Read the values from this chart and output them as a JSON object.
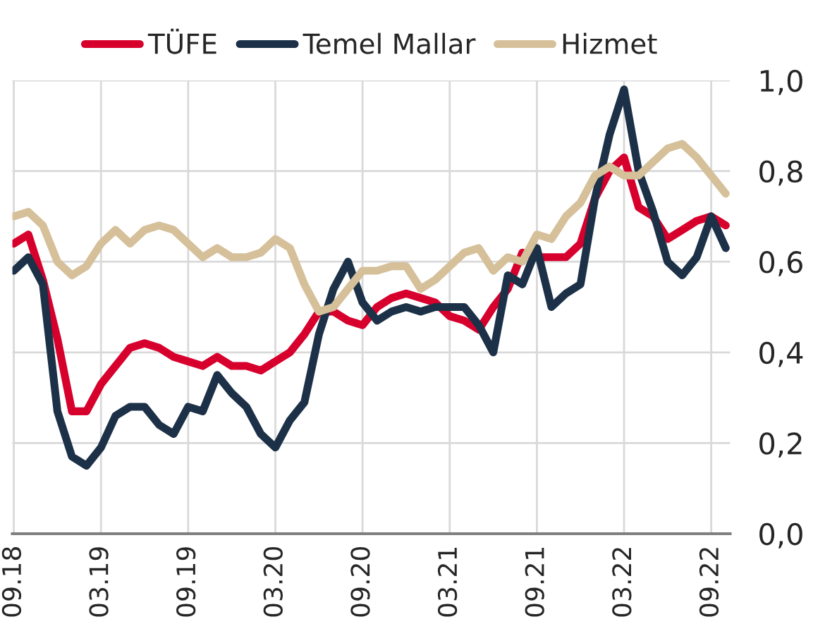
{
  "chart_data": {
    "type": "line",
    "categories": [
      "09.18",
      null,
      null,
      null,
      null,
      null,
      "03.19",
      null,
      null,
      null,
      null,
      null,
      "09.19",
      null,
      null,
      null,
      null,
      null,
      "03.20",
      null,
      null,
      null,
      null,
      null,
      "09.20",
      null,
      null,
      null,
      null,
      null,
      "03.21",
      null,
      null,
      null,
      null,
      null,
      "09.21",
      null,
      null,
      null,
      null,
      null,
      "03.22",
      null,
      null,
      null,
      null,
      null,
      "09.22",
      null
    ],
    "series": [
      {
        "name": "TÜFE",
        "color": "#d7002d",
        "values": [
          0.64,
          0.66,
          0.56,
          0.43,
          0.27,
          0.27,
          0.33,
          0.37,
          0.41,
          0.42,
          0.41,
          0.39,
          0.38,
          0.37,
          0.39,
          0.37,
          0.37,
          0.36,
          0.38,
          0.4,
          0.44,
          0.49,
          0.49,
          0.47,
          0.46,
          0.5,
          0.52,
          0.53,
          0.52,
          0.51,
          0.48,
          0.47,
          0.45,
          0.5,
          0.54,
          0.62,
          0.61,
          0.61,
          0.61,
          0.64,
          0.74,
          0.8,
          0.83,
          0.72,
          0.7,
          0.65,
          0.67,
          0.69,
          0.7,
          0.68
        ]
      },
      {
        "name": "Temel Mallar",
        "color": "#1c3148",
        "values": [
          0.58,
          0.61,
          0.55,
          0.27,
          0.17,
          0.15,
          0.19,
          0.26,
          0.28,
          0.28,
          0.24,
          0.22,
          0.28,
          0.27,
          0.35,
          0.31,
          0.28,
          0.22,
          0.19,
          0.25,
          0.29,
          0.44,
          0.54,
          0.6,
          0.51,
          0.47,
          0.49,
          0.5,
          0.49,
          0.5,
          0.5,
          0.5,
          0.46,
          0.4,
          0.57,
          0.55,
          0.63,
          0.5,
          0.53,
          0.55,
          0.74,
          0.88,
          0.98,
          0.8,
          0.71,
          0.6,
          0.57,
          0.61,
          0.7,
          0.63
        ]
      },
      {
        "name": "Hizmet",
        "color": "#d5c09a",
        "values": [
          0.7,
          0.71,
          0.68,
          0.6,
          0.57,
          0.59,
          0.64,
          0.67,
          0.64,
          0.67,
          0.68,
          0.67,
          0.64,
          0.61,
          0.63,
          0.61,
          0.61,
          0.62,
          0.65,
          0.63,
          0.55,
          0.49,
          0.5,
          0.54,
          0.58,
          0.58,
          0.59,
          0.59,
          0.54,
          0.56,
          0.59,
          0.62,
          0.63,
          0.58,
          0.61,
          0.6,
          0.66,
          0.65,
          0.7,
          0.73,
          0.79,
          0.81,
          0.79,
          0.79,
          0.82,
          0.85,
          0.86,
          0.83,
          0.79,
          0.75
        ]
      }
    ],
    "ylim": [
      0,
      1.0
    ],
    "yticks": [
      {
        "value": 0,
        "label": "0,0"
      },
      {
        "value": 0.2,
        "label": "0,2"
      },
      {
        "value": 0.4,
        "label": "0,4"
      },
      {
        "value": 0.6,
        "label": "0,6"
      },
      {
        "value": 0.8,
        "label": "0,8"
      },
      {
        "value": 1.0,
        "label": "1,0"
      }
    ],
    "grid": true,
    "legend": "top",
    "marker": "none",
    "line_style": "solid"
  }
}
